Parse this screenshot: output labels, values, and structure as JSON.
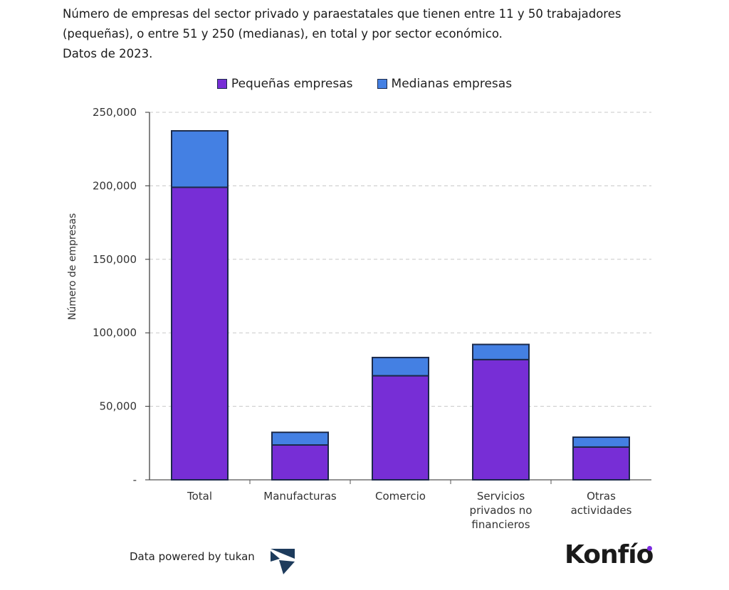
{
  "title_lines": [
    "Número de empresas del sector privado y paraestatales que tienen entre 11 y 50 trabajadores",
    "(pequeñas), o entre 51 y 250 (medianas), en total y por sector económico.",
    "Datos de 2023."
  ],
  "footer": {
    "credit": "Data powered by tukan",
    "brand": "Konfío"
  },
  "chart_data": {
    "type": "bar",
    "stacked": true,
    "title": "Número de empresas del sector privado y paraestatales que tienen entre 11 y 50 trabajadores (pequeñas), o entre 51 y 250 (medianas), en total y por sector económico. Datos de 2023.",
    "xlabel": "",
    "ylabel": "Número de empresas",
    "ylim": [
      0,
      250000
    ],
    "yticks": [
      0,
      50000,
      100000,
      150000,
      200000,
      250000
    ],
    "ytick_labels": [
      "-",
      "50,000",
      "100,000",
      "150,000",
      "200,000",
      "250,000"
    ],
    "grid": true,
    "legend_position": "top-center",
    "categories": [
      "Total",
      "Manufacturas",
      "Comercio",
      "Servicios privados no financieros",
      "Otras actividades"
    ],
    "category_label_lines": [
      [
        "Total"
      ],
      [
        "Manufacturas"
      ],
      [
        "Comercio"
      ],
      [
        "Servicios",
        "privados no",
        "financieros"
      ],
      [
        "Otras",
        "actividades"
      ]
    ],
    "series": [
      {
        "name": "Pequeñas empresas",
        "color": "#772ed6",
        "values": [
          199000,
          23700,
          70800,
          81800,
          22300
        ]
      },
      {
        "name": "Medianas empresas",
        "color": "#4480e3",
        "values": [
          38400,
          8600,
          12400,
          10300,
          6700
        ]
      }
    ]
  }
}
